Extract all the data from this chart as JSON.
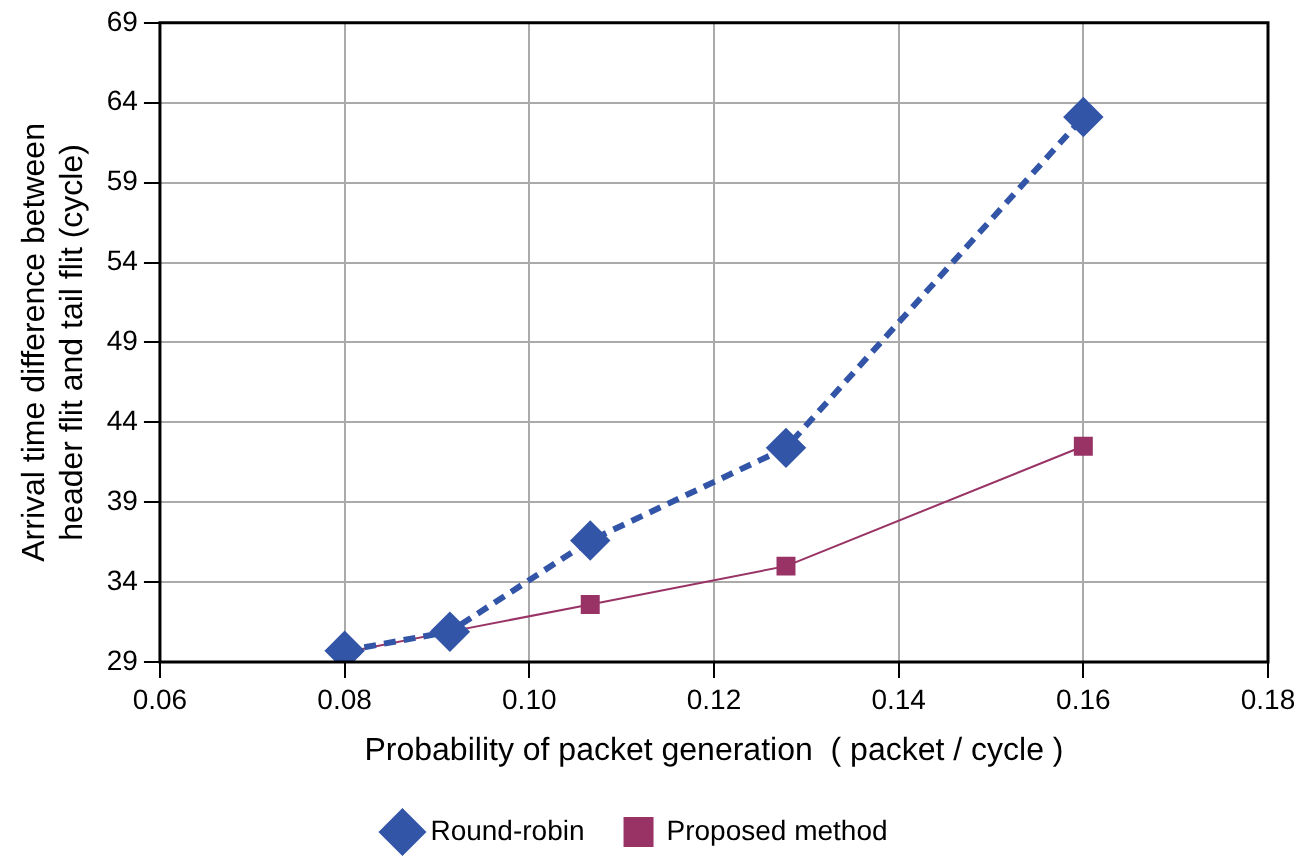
{
  "chart_data": {
    "type": "line",
    "xlabel": "Probability of packet generation  ( packet / cycle )",
    "ylabel": "Arrival time difference between\nheader flit and tail flit (cycle)",
    "xlim": [
      0.06,
      0.18
    ],
    "xticks": [
      0.06,
      0.08,
      {
        "value": 0.1,
        "label": "0.10"
      },
      0.12,
      0.14,
      0.16,
      0.18
    ],
    "ylim": [
      29,
      69
    ],
    "yticks": [
      29,
      34,
      39,
      44,
      49,
      54,
      59,
      64,
      69
    ],
    "grid": true,
    "legend": "bottom",
    "series": [
      {
        "name": "Round-robin",
        "color": "#3355a8",
        "x": [
          0.08,
          0.0914,
          0.1066,
          0.1278,
          0.16
        ],
        "values": [
          29.7,
          30.9,
          36.6,
          42.4,
          63.1
        ],
        "marker": "diamond",
        "line_style": "dashed"
      },
      {
        "name": "Proposed method",
        "color": "#993366",
        "x": [
          0.08,
          0.0914,
          0.1066,
          0.1278,
          0.16
        ],
        "values": [
          29.6,
          30.9,
          32.6,
          35.0,
          42.5
        ],
        "marker": "square",
        "line_style": "solid"
      }
    ]
  }
}
